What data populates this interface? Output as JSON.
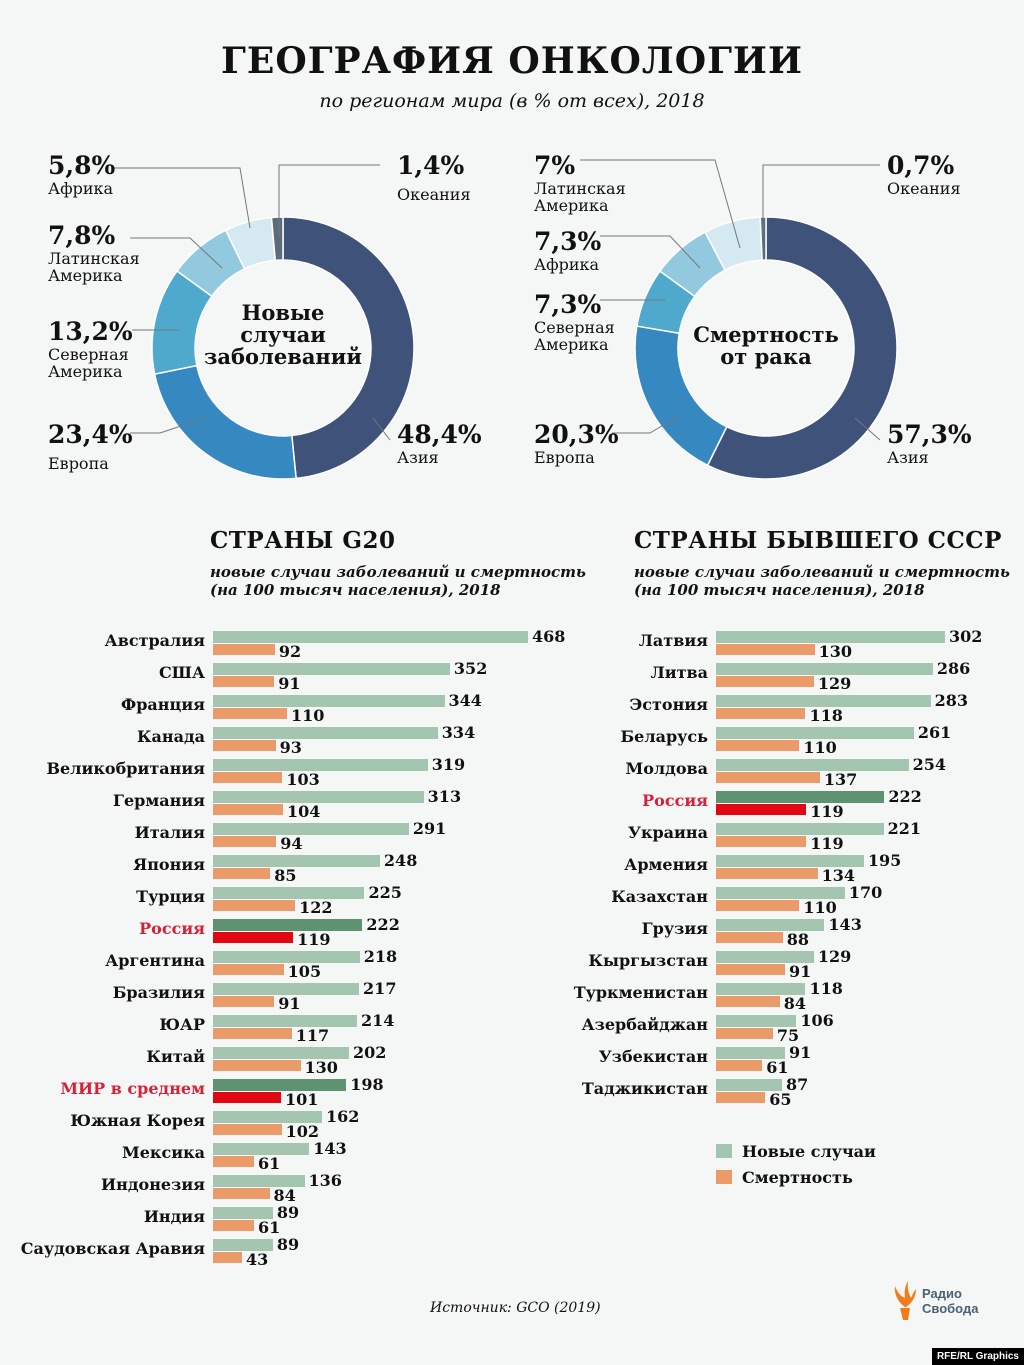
{
  "title": "ГЕОГРАФИЯ ОНКОЛОГИИ",
  "subtitle": "по регионам мира (в % от всех), 2018",
  "chart_data": [
    {
      "type": "pie",
      "title": "Новые случаи заболеваний",
      "center_label": [
        "Новые",
        "случаи",
        "заболеваний"
      ],
      "slices": [
        {
          "label": "Азия",
          "value": 48.4,
          "text": "48,4%",
          "color": "#3f5279"
        },
        {
          "label": "Европа",
          "value": 23.4,
          "text": "23,4%",
          "color": "#3589c0"
        },
        {
          "label": "Северная Америка",
          "value": 13.2,
          "text": "13,2%",
          "color": "#4fa9cd"
        },
        {
          "label": "Латинская Америка",
          "value": 7.8,
          "text": "7,8%",
          "color": "#92c9de"
        },
        {
          "label": "Африка",
          "value": 5.8,
          "text": "5,8%",
          "color": "#d4e9f1"
        },
        {
          "label": "Океания",
          "value": 1.4,
          "text": "1,4%",
          "color": "#5b6b78"
        }
      ]
    },
    {
      "type": "pie",
      "title": "Смертность от рака",
      "center_label": [
        "Смертность",
        "от рака"
      ],
      "slices": [
        {
          "label": "Азия",
          "value": 57.3,
          "text": "57,3%",
          "color": "#3f5279"
        },
        {
          "label": "Европа",
          "value": 20.3,
          "text": "20,3%",
          "color": "#3589c0"
        },
        {
          "label": "Северная Америка",
          "value": 7.3,
          "text": "7,3%",
          "color": "#4fa9cd"
        },
        {
          "label": "Африка",
          "value": 7.3,
          "text": "7,3%",
          "color": "#92c9de"
        },
        {
          "label": "Латинская Америка",
          "value": 7,
          "text": "7%",
          "color": "#d4e9f1"
        },
        {
          "label": "Океания",
          "value": 0.7,
          "text": "0,7%",
          "color": "#5b6b78"
        }
      ]
    },
    {
      "type": "bar",
      "orientation": "horizontal",
      "title": "СТРАНЫ G20",
      "subtitle": [
        "новые случаи заболеваний и смертность",
        "(на 100 тысяч населения), 2018"
      ],
      "categories": [
        "Австралия",
        "США",
        "Франция",
        "Канада",
        "Великобритания",
        "Германия",
        "Италия",
        "Япония",
        "Турция",
        "Россия",
        "Аргентина",
        "Бразилия",
        "ЮАР",
        "Китай",
        "МИР в среднем",
        "Южная Корея",
        "Мексика",
        "Индонезия",
        "Индия",
        "Саудовская Аравия"
      ],
      "highlight": [
        "Россия",
        "МИР в среднем"
      ],
      "series": [
        {
          "name": "Новые случаи",
          "values": [
            468,
            352,
            344,
            334,
            319,
            313,
            291,
            248,
            225,
            222,
            218,
            217,
            214,
            202,
            198,
            162,
            143,
            136,
            89,
            89
          ]
        },
        {
          "name": "Смертность",
          "values": [
            92,
            91,
            110,
            93,
            103,
            104,
            94,
            85,
            122,
            119,
            105,
            91,
            117,
            130,
            101,
            102,
            61,
            84,
            61,
            43
          ]
        }
      ]
    },
    {
      "type": "bar",
      "orientation": "horizontal",
      "title": "СТРАНЫ БЫВШЕГО СССР",
      "subtitle": [
        "новые случаи заболеваний и смертность",
        "(на 100 тысяч населения), 2018"
      ],
      "categories": [
        "Латвия",
        "Литва",
        "Эстония",
        "Беларусь",
        "Молдова",
        "Россия",
        "Украина",
        "Армения",
        "Казахстан",
        "Грузия",
        "Кыргызстан",
        "Туркменистан",
        "Азербайджан",
        "Узбекистан",
        "Таджикистан"
      ],
      "highlight": [
        "Россия"
      ],
      "series": [
        {
          "name": "Новые случаи",
          "values": [
            302,
            286,
            283,
            261,
            254,
            222,
            221,
            195,
            170,
            143,
            129,
            118,
            106,
            91,
            87
          ]
        },
        {
          "name": "Смертность",
          "values": [
            130,
            129,
            118,
            110,
            137,
            119,
            119,
            134,
            110,
            88,
            91,
            84,
            75,
            61,
            65
          ]
        }
      ]
    }
  ],
  "colors": {
    "new": "#a4c6b0",
    "death": "#eb9a69",
    "highlight_new": "#5f9270",
    "highlight_death": "#e30613",
    "highlight_label": "#d6213a"
  },
  "legend": {
    "new": "Новые случаи",
    "death": "Смертность"
  },
  "source": "Источник: GCO (2019)",
  "logo": [
    "Радио",
    "Свобода"
  ],
  "credit": "RFE/RL Graphics"
}
